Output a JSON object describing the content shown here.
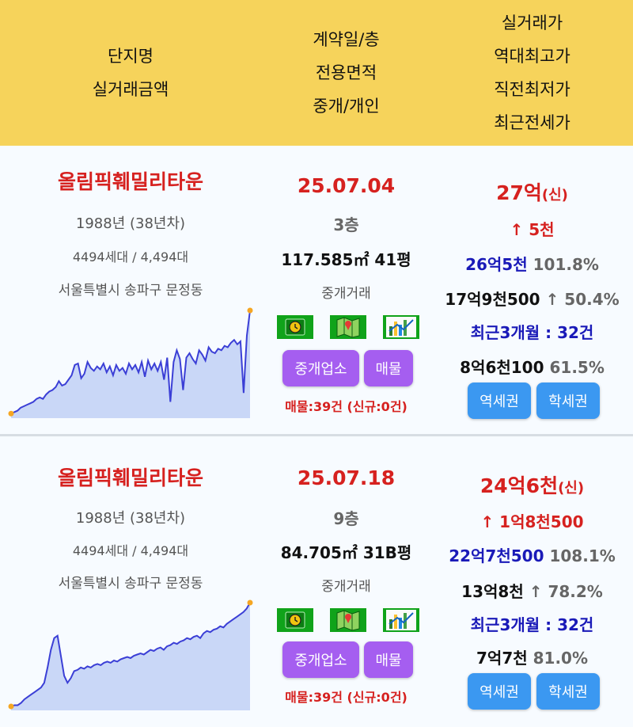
{
  "header": {
    "cut_text": "실거래가",
    "col1": [
      "단지명",
      "실거래금액"
    ],
    "col2": [
      "계약일/층",
      "전용면적",
      "중개/개인"
    ],
    "col3": [
      "실거래가",
      "역대최고가",
      "직전최저가",
      "최근전세가"
    ]
  },
  "listings": [
    {
      "complex_name": "올림픽훼밀리타운",
      "built": "1988년 (38년차)",
      "households": "4494세대 / 4,494대",
      "address": "서울특별시 송파구 문정동",
      "date": "25.07.04",
      "floor": "3층",
      "area": "117.585㎡ 41평",
      "trade_type": "중개거래",
      "icons": [
        "clock-icon",
        "map-icon",
        "chart-icon"
      ],
      "broker_button": "중개업소",
      "listing_button": "매물",
      "listing_count": "매물:39건 (신규:0건)",
      "price": "27억",
      "price_tag": "(신)",
      "change": "↑ 5천",
      "high_price": "26억5천",
      "high_ratio": "101.8%",
      "low_price": "17억9천500",
      "low_arrow": "↑",
      "low_ratio": "50.4%",
      "recent_count": "최근3개월 : 32건",
      "jeonse_price": "8억6천100",
      "jeonse_ratio": "61.5%",
      "station_button": "역세권",
      "school_button": "학세권",
      "chart_data": {
        "type": "area",
        "values": [
          2,
          3,
          4,
          6,
          7,
          8,
          9,
          10,
          12,
          13,
          12,
          15,
          17,
          18,
          20,
          24,
          21,
          22,
          25,
          28,
          35,
          36,
          26,
          29,
          37,
          33,
          31,
          34,
          32,
          36,
          30,
          34,
          28,
          35,
          31,
          33,
          29,
          36,
          32,
          35,
          30,
          37,
          27,
          38,
          32,
          36,
          31,
          37,
          25,
          40,
          10,
          37,
          45,
          39,
          18,
          40,
          43,
          39,
          36,
          45,
          42,
          38,
          47,
          44,
          43,
          46,
          45,
          48,
          47,
          50,
          52,
          49,
          51,
          16,
          55,
          72
        ]
      }
    },
    {
      "complex_name": "올림픽훼밀리타운",
      "built": "1988년 (38년차)",
      "households": "4494세대 / 4,494대",
      "address": "서울특별시 송파구 문정동",
      "date": "25.07.18",
      "floor": "9층",
      "area": "84.705㎡ 31B평",
      "trade_type": "중개거래",
      "icons": [
        "clock-icon",
        "map-icon",
        "chart-icon"
      ],
      "broker_button": "중개업소",
      "listing_button": "매물",
      "listing_count": "매물:39건 (신규:0건)",
      "price": "24억6천",
      "price_tag": "(신)",
      "change": "↑ 1억8천500",
      "high_price": "22억7천500",
      "high_ratio": "108.1%",
      "low_price": "13억8천",
      "low_arrow": "↑",
      "low_ratio": "78.2%",
      "recent_count": "최근3개월 : 32건",
      "jeonse_price": "7억7천",
      "jeonse_ratio": "81.0%",
      "station_button": "역세권",
      "school_button": "학세권",
      "chart_data": {
        "type": "area",
        "values": [
          2,
          3,
          3,
          5,
          8,
          10,
          12,
          14,
          16,
          18,
          22,
          35,
          50,
          60,
          62,
          45,
          28,
          22,
          26,
          32,
          33,
          35,
          34,
          36,
          35,
          37,
          38,
          37,
          39,
          40,
          39,
          41,
          40,
          42,
          43,
          44,
          43,
          45,
          46,
          47,
          46,
          48,
          50,
          49,
          51,
          52,
          50,
          53,
          54,
          56,
          55,
          57,
          58,
          60,
          59,
          61,
          62,
          60,
          64,
          66,
          65,
          67,
          68,
          70,
          69,
          72,
          74,
          76,
          78,
          80,
          82,
          85,
          90
        ]
      }
    }
  ]
}
